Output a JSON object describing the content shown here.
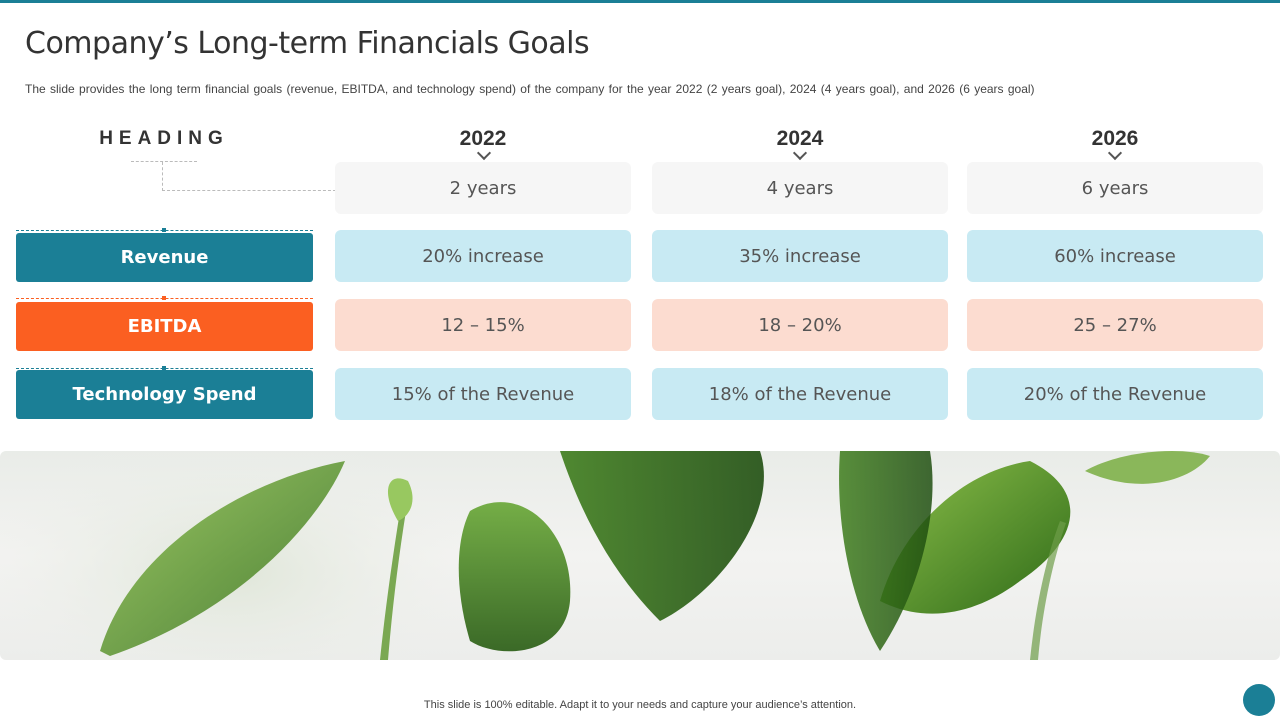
{
  "slide": {
    "title": "Company’s Long-term Financials Goals",
    "subtitle": "The slide provides  the long term financial goals (revenue,  EBITDA, and technology spend) of the company for the year 2022 (2 years goal), 2024 (4 years goal), and 2026 (6 years goal)",
    "footer": "This slide is 100% editable. Adapt it to your needs and capture your audience’s attention."
  },
  "table": {
    "heading": "HEADING",
    "years": [
      "2022",
      "2024",
      "2026"
    ],
    "horizon": [
      "2 years",
      "4 years",
      "6 years"
    ],
    "rows": [
      {
        "label": "Revenue",
        "values": [
          "20% increase",
          "35% increase",
          "60% increase"
        ]
      },
      {
        "label": "EBITDA",
        "values": [
          "12 – 15%",
          "18 – 20%",
          "25 – 27%"
        ]
      },
      {
        "label": "Technology Spend",
        "values": [
          "15% of the Revenue",
          "18% of the Revenue",
          "20% of the Revenue"
        ]
      }
    ]
  },
  "colors": {
    "accent": "#1b7f96",
    "ebitda": "#fb5f21",
    "light_blue_cell": "#c8eaf3",
    "peach_cell": "#fcdcd0",
    "gray_cell": "#f6f6f6"
  }
}
